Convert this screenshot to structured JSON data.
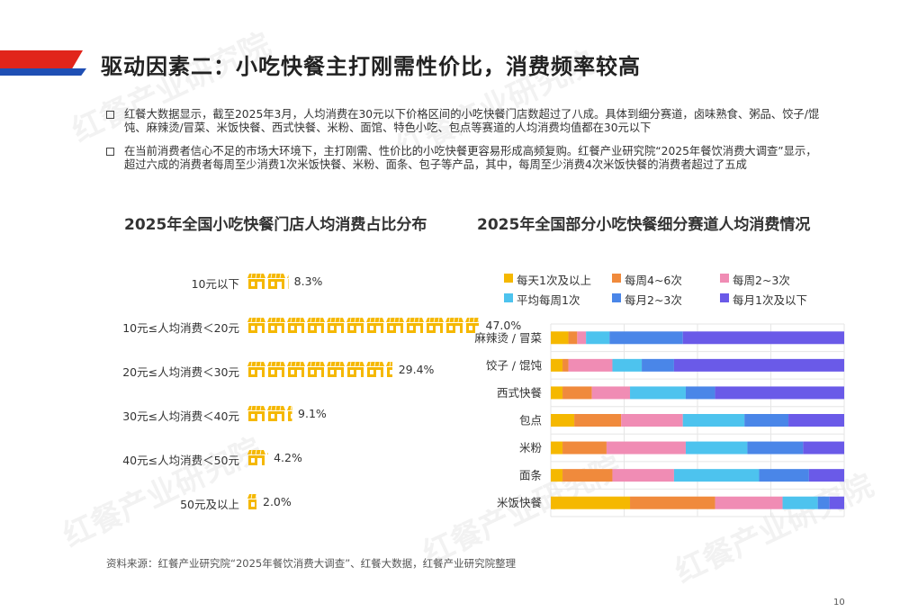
{
  "header": {
    "title": "驱动因素二：小吃快餐主打刚需性价比，消费频率较高",
    "accent_red": "#e1251b",
    "accent_blue": "#1f4fb4"
  },
  "bullets": [
    "红餐大数据显示，截至2025年3月，人均消费在30元以下价格区间的小吃快餐门店数超过了八成。具体到细分赛道，卤味熟食、粥品、饺子/馄饨、麻辣烫/冒菜、米饭快餐、西式快餐、米粉、面馆、特色小吃、包点等赛道的人均消费均值都在30元以下",
    "在当前消费者信心不足的市场大环境下，主打刚需、性价比的小吃快餐更容易形成高频复购。红餐产业研究院“2025年餐饮消费大调查”显示，超过六成的消费者每周至少消费1次米饭快餐、米粉、面条、包子等产品，其中，每周至少消费4次米饭快餐的消费者超过了五成"
  ],
  "watermark": "红餐产业研究院",
  "chart_data": [
    {
      "type": "bar",
      "title": "2025年全国小吃快餐门店人均消费占比分布",
      "categories": [
        "10元以下",
        "10元≤人均消费＜20元",
        "20元≤人均消费＜30元",
        "30元≤人均消费＜40元",
        "40元≤人均消费＜50元",
        "50元及以上"
      ],
      "values": [
        8.3,
        47.0,
        29.4,
        9.1,
        4.2,
        2.0
      ],
      "value_labels": [
        "8.3%",
        "47.0%",
        "29.4%",
        "9.1%",
        "4.2%",
        "2.0%"
      ],
      "icon": "storefront-icon",
      "color": "#f5b800"
    },
    {
      "type": "bar",
      "orientation": "horizontal",
      "stacked": true,
      "title": "2025年全国部分小吃快餐细分赛道人均消费情况",
      "categories": [
        "麻辣烫 / 冒菜",
        "饺子 / 馄饨",
        "西式快餐",
        "包点",
        "米粉",
        "面条",
        "米饭快餐"
      ],
      "xlim": [
        0,
        100
      ],
      "grid": true,
      "legend_position": "top",
      "series": [
        {
          "name": "每天1次及以上",
          "color": "#f5b800",
          "values": [
            6,
            4,
            4,
            8,
            4,
            4,
            27
          ]
        },
        {
          "name": "每周4~6次",
          "color": "#f08a3c",
          "values": [
            3,
            2,
            10,
            16,
            15,
            17,
            29
          ]
        },
        {
          "name": "每周2~3次",
          "color": "#f08cb4",
          "values": [
            3,
            15,
            13,
            21,
            27,
            21,
            23
          ]
        },
        {
          "name": "平均每周1次",
          "color": "#4dc3ee",
          "values": [
            8,
            10,
            19,
            21,
            21,
            29,
            12
          ]
        },
        {
          "name": "每月2~3次",
          "color": "#4a86e8",
          "values": [
            25,
            11,
            10,
            15,
            19,
            17,
            4
          ]
        },
        {
          "name": "每月1次及以下",
          "color": "#6a5ae8",
          "values": [
            55,
            58,
            44,
            19,
            14,
            12,
            5
          ]
        }
      ]
    }
  ],
  "source": "资料来源：红餐产业研究院“2025年餐饮消费大调查”、红餐大数据，红餐产业研究院整理",
  "page_number": "10"
}
